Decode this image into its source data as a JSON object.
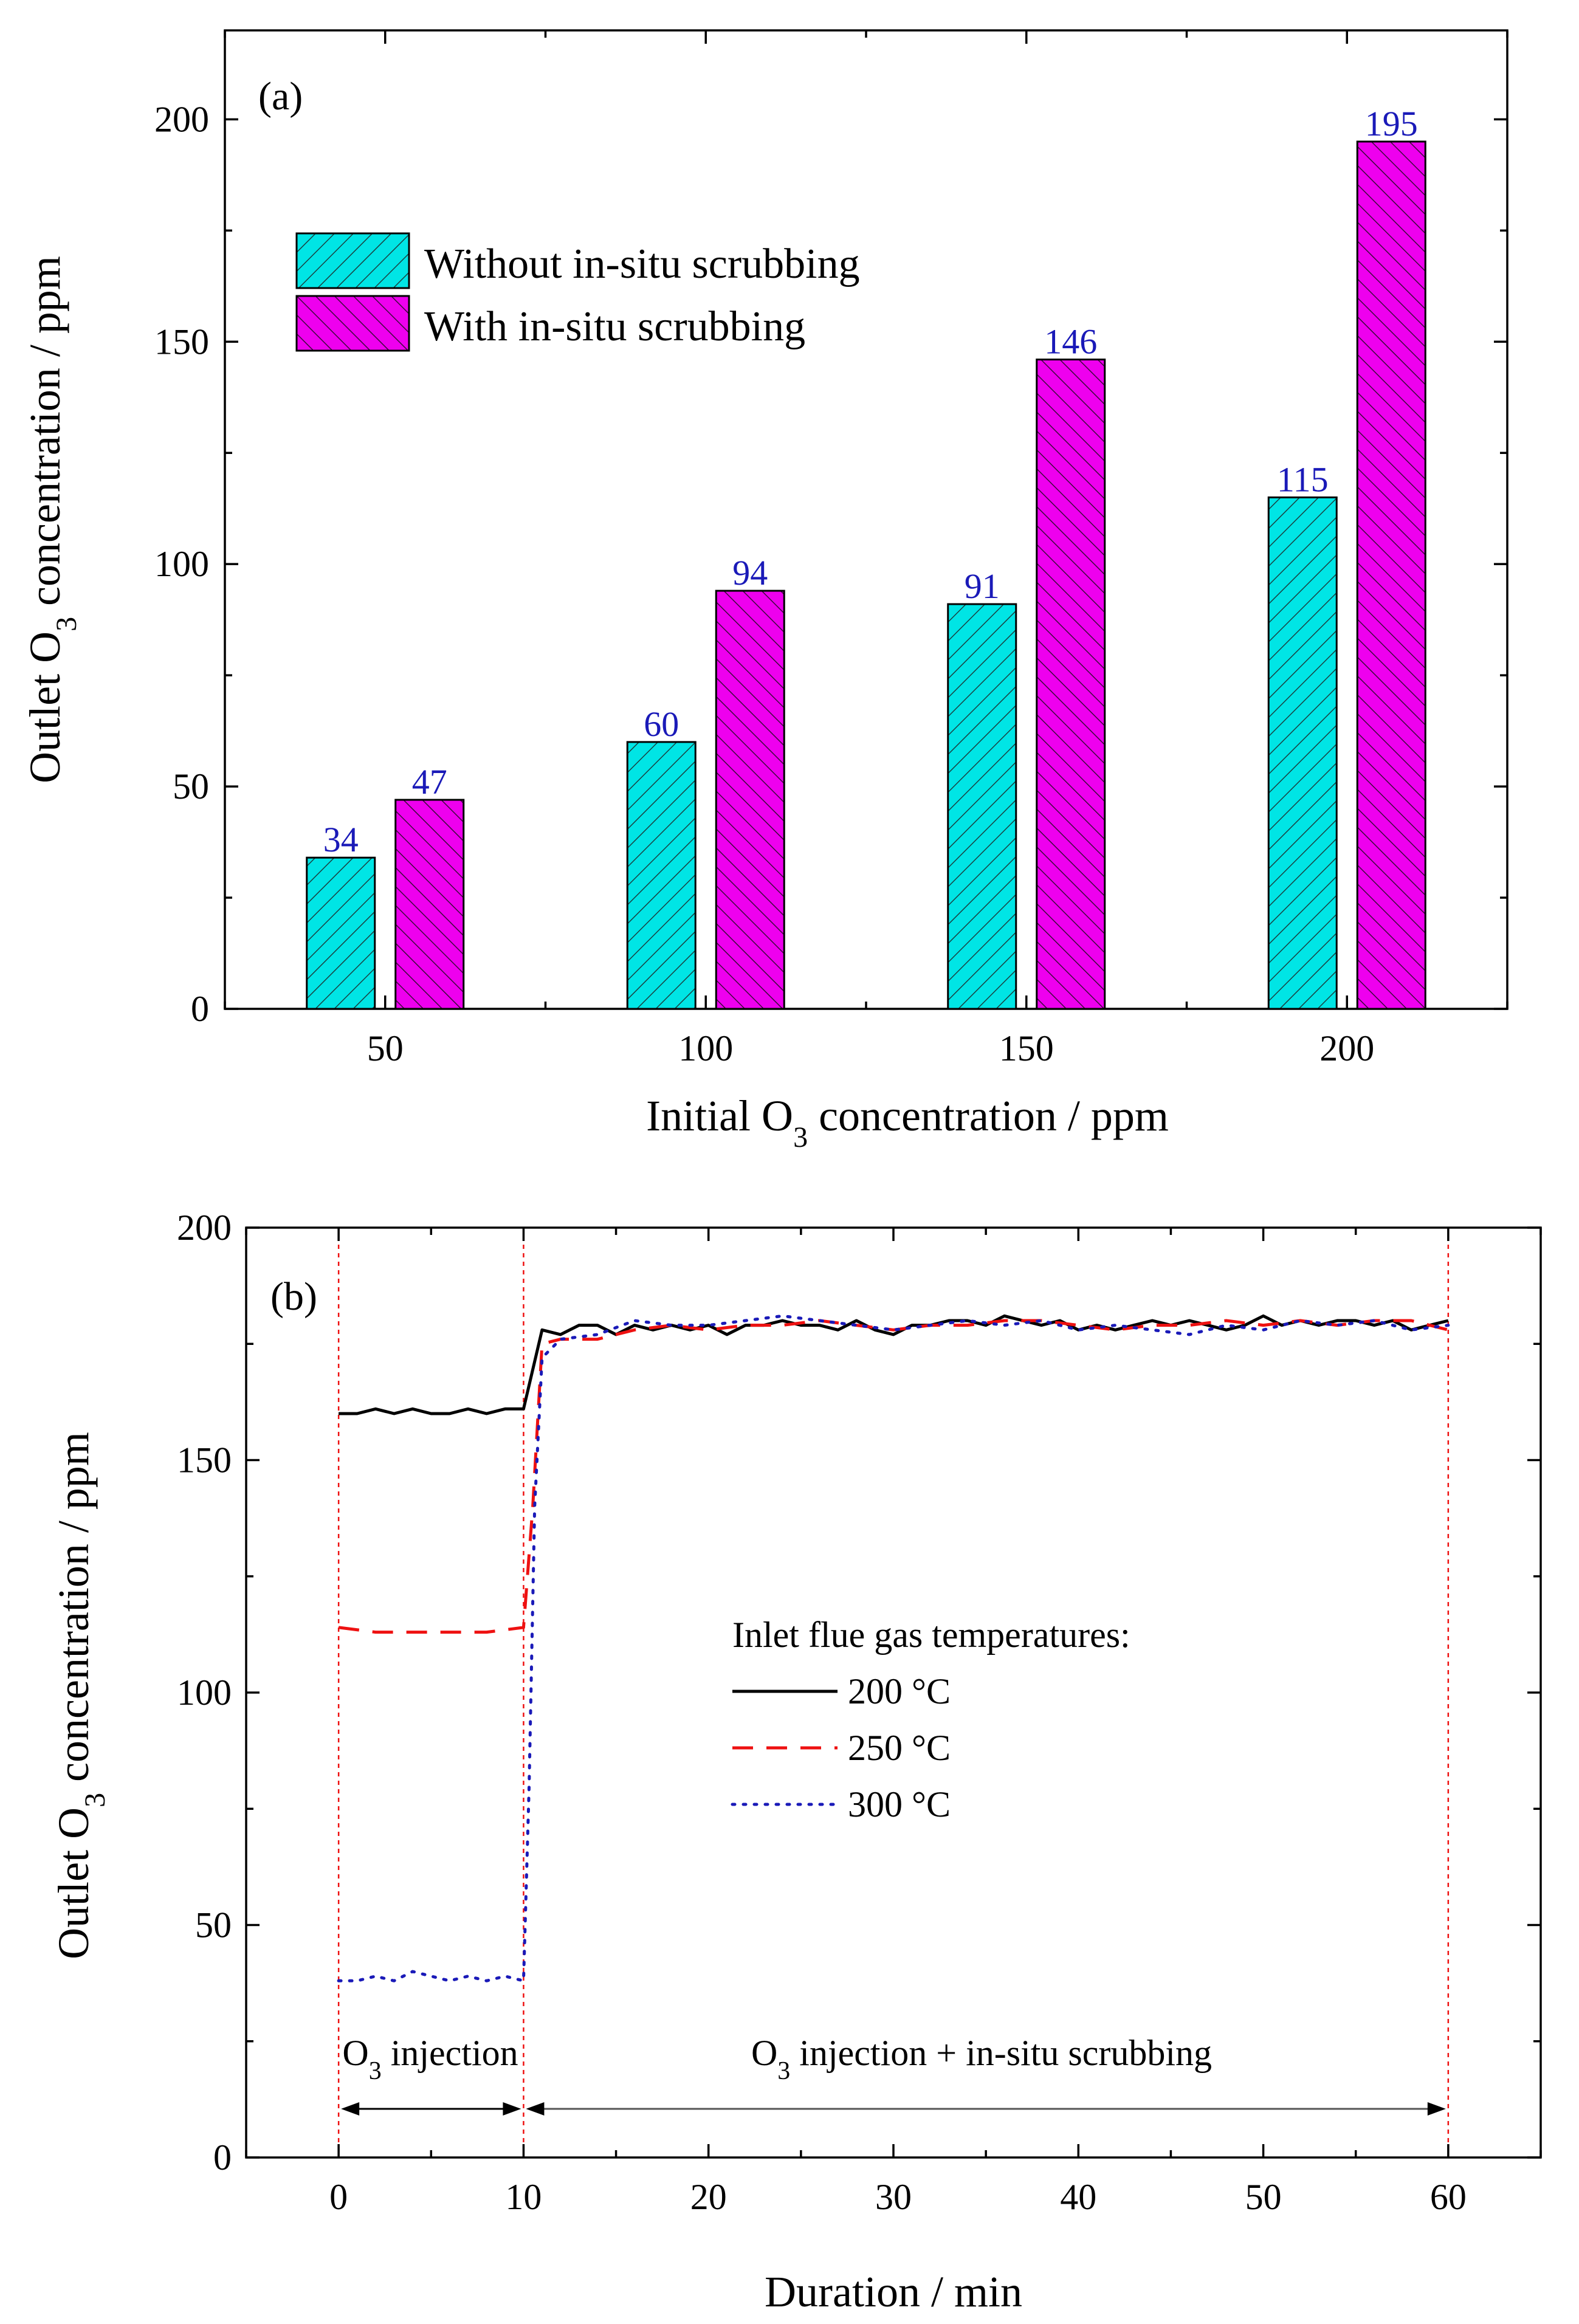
{
  "chart_data": [
    {
      "type": "bar",
      "panel_label": "(a)",
      "xlabel": "Initial O3 concentration / ppm",
      "ylabel": "Outlet O3 concentration / ppm",
      "categories": [
        "50",
        "100",
        "150",
        "200"
      ],
      "ylim": [
        0,
        220
      ],
      "yticks": [
        0,
        50,
        100,
        150,
        200
      ],
      "legend_position": "top-left",
      "series": [
        {
          "name": "Without in-situ scrubbing",
          "color": "#00e5e5",
          "values": [
            34,
            60,
            91,
            115
          ]
        },
        {
          "name": "With in-situ scrubbing",
          "color": "#ee00ee",
          "values": [
            47,
            94,
            146,
            195
          ]
        }
      ],
      "data_labels": true
    },
    {
      "type": "line",
      "panel_label": "(b)",
      "xlabel": "Duration / min",
      "ylabel": "Outlet O3 concentration / ppm",
      "xlim": [
        -5,
        65
      ],
      "ylim": [
        0,
        200
      ],
      "xticks": [
        0,
        10,
        20,
        30,
        40,
        50,
        60
      ],
      "yticks": [
        0,
        50,
        100,
        150,
        200
      ],
      "legend_title": "Inlet flue gas temperatures:",
      "legend_position": "center-right",
      "series": [
        {
          "name": "200 °C",
          "color": "#000000",
          "style": "solid",
          "x": [
            0,
            1,
            2,
            3,
            4,
            5,
            6,
            7,
            8,
            9,
            10,
            11,
            12,
            13,
            14,
            15,
            16,
            17,
            18,
            19,
            20,
            21,
            22,
            23,
            24,
            25,
            26,
            27,
            28,
            29,
            30,
            31,
            32,
            33,
            34,
            35,
            36,
            37,
            38,
            39,
            40,
            41,
            42,
            43,
            44,
            45,
            46,
            47,
            48,
            49,
            50,
            51,
            52,
            53,
            54,
            55,
            56,
            57,
            58,
            59,
            60
          ],
          "y": [
            160,
            160,
            161,
            160,
            161,
            160,
            160,
            161,
            160,
            161,
            161,
            178,
            177,
            179,
            179,
            177,
            179,
            178,
            179,
            178,
            179,
            177,
            179,
            179,
            180,
            179,
            179,
            178,
            180,
            178,
            177,
            179,
            179,
            180,
            180,
            179,
            181,
            180,
            179,
            180,
            178,
            179,
            178,
            179,
            180,
            179,
            180,
            179,
            178,
            179,
            181,
            179,
            180,
            179,
            180,
            180,
            179,
            180,
            178,
            179,
            180
          ]
        },
        {
          "name": "250 °C",
          "color": "#ee1111",
          "style": "dashed",
          "x": [
            0,
            2,
            4,
            6,
            8,
            10,
            10.5,
            11,
            12,
            14,
            16,
            18,
            20,
            22,
            24,
            26,
            28,
            30,
            32,
            34,
            36,
            38,
            40,
            42,
            44,
            46,
            48,
            50,
            52,
            54,
            56,
            58,
            60
          ],
          "y": [
            114,
            113,
            113,
            113,
            113,
            114,
            140,
            175,
            176,
            176,
            178,
            179,
            178,
            179,
            179,
            180,
            179,
            178,
            179,
            179,
            180,
            180,
            179,
            178,
            179,
            179,
            180,
            179,
            180,
            179,
            180,
            180,
            178
          ]
        },
        {
          "name": "300 °C",
          "color": "#1a1ab8",
          "style": "dotted",
          "x": [
            0,
            1,
            2,
            3,
            4,
            5,
            6,
            7,
            8,
            9,
            10,
            10.3,
            10.6,
            11,
            12,
            14,
            16,
            18,
            20,
            22,
            24,
            26,
            28,
            30,
            32,
            34,
            36,
            38,
            40,
            42,
            44,
            46,
            48,
            50,
            52,
            54,
            56,
            58,
            60
          ],
          "y": [
            38,
            38,
            39,
            38,
            40,
            39,
            38,
            39,
            38,
            39,
            38,
            80,
            140,
            172,
            176,
            177,
            180,
            179,
            179,
            180,
            181,
            180,
            179,
            178,
            179,
            180,
            179,
            180,
            178,
            179,
            178,
            177,
            179,
            178,
            180,
            179,
            180,
            178,
            179
          ]
        }
      ],
      "annotations": [
        {
          "text": "O3 injection",
          "x_start": 0,
          "x_end": 10
        },
        {
          "text": "O3 injection + in-situ scrubbing",
          "x_start": 10,
          "x_end": 60
        }
      ],
      "vertical_guides": [
        0,
        10,
        60
      ]
    }
  ],
  "text": {
    "a_ylabel_pre": "Outlet O",
    "a_ylabel_sub": "3",
    "a_ylabel_post": " concentration / ppm",
    "a_xlabel_pre": "Initial O",
    "a_xlabel_sub": "3",
    "a_xlabel_post": " concentration / ppm",
    "b_ylabel_pre": "Outlet O",
    "b_ylabel_sub": "3",
    "b_ylabel_post": " concentration / ppm",
    "b_xlabel": "Duration / min",
    "annot1_pre": "O",
    "annot1_sub": "3",
    "annot1_post": " injection",
    "annot2_pre": "O",
    "annot2_sub": "3",
    "annot2_post": " injection + in-situ scrubbing"
  }
}
